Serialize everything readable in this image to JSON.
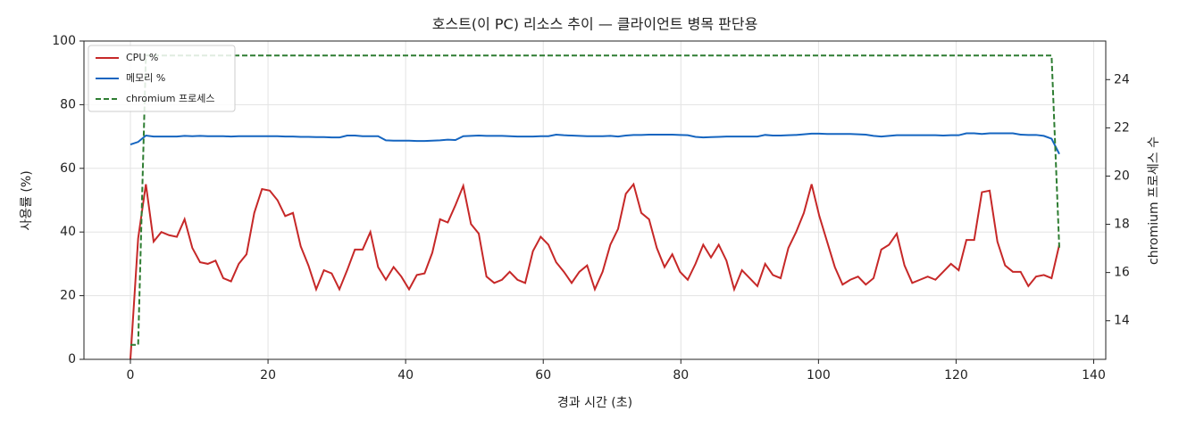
{
  "chart_data": {
    "type": "line",
    "title": "호스트(이 PC) 리소스 추이 — 클라이언트 병목 판단용",
    "xlabel": "경과 시간 (초)",
    "ylabel": "사용률 (%)",
    "y2label": "chromium 프로세스 수",
    "x": [
      0,
      1.125,
      2.25,
      3.375,
      4.5,
      5.625,
      6.75,
      7.875,
      9,
      10.125,
      11.25,
      12.375,
      13.5,
      14.625,
      15.75,
      16.875,
      18,
      19.125,
      20.25,
      21.375,
      22.5,
      23.625,
      24.75,
      25.875,
      27,
      28.125,
      29.25,
      30.375,
      31.5,
      32.625,
      33.75,
      34.875,
      36,
      37.125,
      38.25,
      39.375,
      40.5,
      41.625,
      42.75,
      43.875,
      45,
      46.125,
      47.25,
      48.375,
      49.5,
      50.625,
      51.75,
      52.875,
      54,
      55.125,
      56.25,
      57.375,
      58.5,
      59.625,
      60.75,
      61.875,
      63,
      64.125,
      65.25,
      66.375,
      67.5,
      68.625,
      69.75,
      70.875,
      72,
      73.125,
      74.25,
      75.375,
      76.5,
      77.625,
      78.75,
      79.875,
      81,
      82.125,
      83.25,
      84.375,
      85.5,
      86.625,
      87.75,
      88.875,
      90,
      91.125,
      92.25,
      93.375,
      94.5,
      95.625,
      96.75,
      97.875,
      99,
      100.125,
      101.25,
      102.375,
      103.5,
      104.625,
      105.75,
      106.875,
      108,
      109.125,
      110.25,
      111.375,
      112.5,
      113.625,
      114.75,
      115.875,
      117,
      118.125,
      119.25,
      120.375,
      121.5,
      122.625,
      123.75,
      124.875,
      126,
      127.125,
      128.25,
      129.375,
      130.5,
      131.625,
      132.75,
      133.875,
      135
    ],
    "series": [
      {
        "name": "CPU %",
        "color": "#c62828",
        "values": [
          0,
          38,
          55,
          37,
          40,
          39,
          38.5,
          44,
          35,
          30.5,
          30,
          31,
          25.5,
          24.5,
          30,
          33,
          46,
          53.5,
          53,
          50,
          45,
          46,
          35.5,
          29.5,
          22,
          28,
          27,
          22,
          28,
          34.5,
          34.5,
          40,
          29,
          25,
          29,
          26,
          22,
          26.5,
          27,
          33.5,
          44,
          43,
          48.5,
          54.5,
          42.5,
          39.5,
          26,
          24,
          25,
          27.5,
          25,
          24,
          34,
          38.5,
          36,
          30.5,
          27.5,
          24,
          27.5,
          29.5,
          22,
          27.5,
          36,
          41,
          52,
          55,
          46,
          44,
          35,
          29,
          33,
          27.5,
          25,
          30,
          36,
          32,
          36,
          31,
          22,
          28,
          25.5,
          23,
          30,
          26.5,
          25.5,
          35,
          40,
          46,
          55,
          45,
          37,
          29,
          23.5,
          25,
          26,
          23.5,
          25.5,
          34.5,
          36,
          39.5,
          29.5,
          24,
          25,
          26,
          25,
          27.5,
          30,
          28,
          37.5,
          37.5,
          52.5,
          53,
          37,
          29.5,
          27.5,
          27.5,
          23,
          26,
          26.5,
          25.5,
          36
        ]
      },
      {
        "name": "메모리 %",
        "color": "#1565c0",
        "values": [
          67.5,
          68.3,
          70.3,
          70,
          70,
          70,
          70,
          70.2,
          70.1,
          70.2,
          70.1,
          70.1,
          70.1,
          70,
          70.1,
          70.1,
          70.1,
          70.1,
          70.1,
          70.1,
          70,
          70,
          69.9,
          69.9,
          69.8,
          69.8,
          69.7,
          69.7,
          70.3,
          70.3,
          70.1,
          70.1,
          70.1,
          68.8,
          68.7,
          68.7,
          68.7,
          68.6,
          68.6,
          68.7,
          68.8,
          69,
          68.9,
          70.1,
          70.2,
          70.3,
          70.2,
          70.2,
          70.2,
          70.1,
          70,
          70,
          70,
          70.1,
          70.1,
          70.6,
          70.4,
          70.3,
          70.2,
          70.1,
          70.1,
          70.1,
          70.2,
          70,
          70.3,
          70.5,
          70.5,
          70.6,
          70.6,
          70.6,
          70.6,
          70.5,
          70.4,
          69.9,
          69.7,
          69.8,
          69.9,
          70,
          70,
          70,
          70,
          70,
          70.5,
          70.3,
          70.3,
          70.4,
          70.5,
          70.7,
          70.9,
          70.9,
          70.8,
          70.8,
          70.8,
          70.8,
          70.7,
          70.6,
          70.2,
          70,
          70.2,
          70.4,
          70.4,
          70.4,
          70.4,
          70.4,
          70.4,
          70.3,
          70.4,
          70.4,
          71,
          71,
          70.8,
          71,
          71,
          71,
          71,
          70.6,
          70.5,
          70.5,
          70.2,
          69.3,
          64.5
        ]
      },
      {
        "name": "chromium 프로세스",
        "color": "#2e7d32",
        "dashed": true,
        "axis": "y2",
        "values": [
          13,
          13,
          25,
          25,
          25,
          25,
          25,
          25,
          25,
          25,
          25,
          25,
          25,
          25,
          25,
          25,
          25,
          25,
          25,
          25,
          25,
          25,
          25,
          25,
          25,
          25,
          25,
          25,
          25,
          25,
          25,
          25,
          25,
          25,
          25,
          25,
          25,
          25,
          25,
          25,
          25,
          25,
          25,
          25,
          25,
          25,
          25,
          25,
          25,
          25,
          25,
          25,
          25,
          25,
          25,
          25,
          25,
          25,
          25,
          25,
          25,
          25,
          25,
          25,
          25,
          25,
          25,
          25,
          25,
          25,
          25,
          25,
          25,
          25,
          25,
          25,
          25,
          25,
          25,
          25,
          25,
          25,
          25,
          25,
          25,
          25,
          25,
          25,
          25,
          25,
          25,
          25,
          25,
          25,
          25,
          25,
          25,
          25,
          25,
          25,
          25,
          25,
          25,
          25,
          25,
          25,
          25,
          25,
          25,
          25,
          25,
          25,
          25,
          25,
          25,
          25,
          25,
          25,
          25,
          25,
          17
        ]
      }
    ],
    "xlim": [
      -6.75,
      141.75
    ],
    "xticks": [
      0,
      20,
      40,
      60,
      80,
      100,
      120,
      140
    ],
    "ylim": [
      0,
      100
    ],
    "yticks": [
      0,
      20,
      40,
      60,
      80,
      100
    ],
    "y2lim": [
      12.4,
      25.6
    ],
    "y2ticks": [
      14,
      16,
      18,
      20,
      22,
      24
    ],
    "grid": true,
    "legend": "upper left"
  }
}
